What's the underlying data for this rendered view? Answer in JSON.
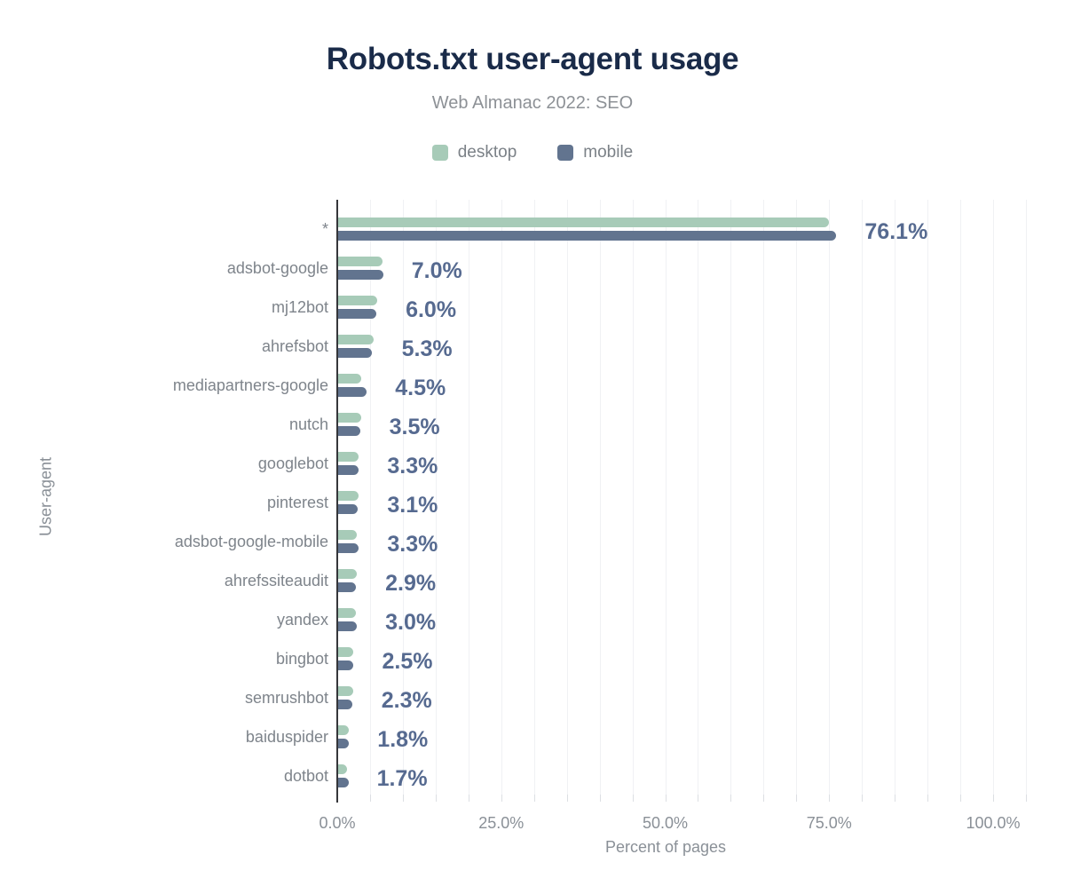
{
  "header": {
    "title": "Robots.txt user-agent usage",
    "subtitle": "Web Almanac 2022: SEO",
    "title_color": "#1a2b49",
    "subtitle_color": "#8d9196"
  },
  "legend": {
    "items": [
      {
        "label": "desktop",
        "color": "#a7cbb8"
      },
      {
        "label": "mobile",
        "color": "#62748f"
      }
    ]
  },
  "axes": {
    "x": {
      "title": "Percent of pages",
      "ticks": [
        {
          "label": "0.0%",
          "value": 0
        },
        {
          "label": "25.0%",
          "value": 25
        },
        {
          "label": "50.0%",
          "value": 50
        },
        {
          "label": "75.0%",
          "value": 75
        },
        {
          "label": "100.0%",
          "value": 100
        }
      ],
      "max": 105,
      "minor_gridline_step": 5
    },
    "y": {
      "title": "User-agent"
    }
  },
  "chart_data": {
    "type": "bar",
    "orientation": "horizontal",
    "title": "Robots.txt user-agent usage",
    "subtitle": "Web Almanac 2022: SEO",
    "xlabel": "Percent of pages",
    "ylabel": "User-agent",
    "xlim": [
      0,
      105
    ],
    "grid": true,
    "legend_position": "top",
    "categories": [
      "*",
      "adsbot-google",
      "mj12bot",
      "ahrefsbot",
      "mediapartners-google",
      "nutch",
      "googlebot",
      "pinterest",
      "adsbot-google-mobile",
      "ahrefssiteaudit",
      "yandex",
      "bingbot",
      "semrushbot",
      "baiduspider",
      "dotbot"
    ],
    "series": [
      {
        "name": "desktop",
        "color": "#a7cbb8",
        "values": [
          74.9,
          6.9,
          6.1,
          5.5,
          3.6,
          3.6,
          3.2,
          3.3,
          3.0,
          3.0,
          2.9,
          2.4,
          2.4,
          1.7,
          1.5
        ]
      },
      {
        "name": "mobile",
        "color": "#62748f",
        "values": [
          76.1,
          7.0,
          6.0,
          5.3,
          4.5,
          3.5,
          3.3,
          3.1,
          3.3,
          2.9,
          3.0,
          2.5,
          2.3,
          1.8,
          1.7
        ]
      }
    ],
    "value_labels": [
      "76.1%",
      "7.0%",
      "6.0%",
      "5.3%",
      "4.5%",
      "3.5%",
      "3.3%",
      "3.1%",
      "3.3%",
      "2.9%",
      "3.0%",
      "2.5%",
      "2.3%",
      "1.8%",
      "1.7%"
    ],
    "value_label_color": "#566a90"
  }
}
